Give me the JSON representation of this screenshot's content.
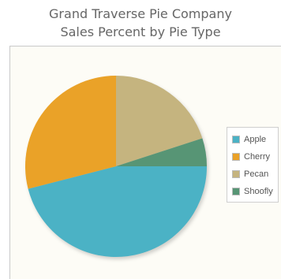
{
  "chart_data": {
    "type": "pie",
    "title_line1": "Grand Traverse Pie Company",
    "title_line2": "Sales Percent by Pie Type",
    "slices": [
      {
        "label": "Apple",
        "value": 46,
        "color": "#4bb2c5"
      },
      {
        "label": "Cherry",
        "value": 29,
        "color": "#eaa228"
      },
      {
        "label": "Pecan",
        "value": 20,
        "color": "#c5b47f"
      },
      {
        "label": "Shoofly",
        "value": 5,
        "color": "#579575"
      }
    ],
    "legend_position": "right"
  }
}
